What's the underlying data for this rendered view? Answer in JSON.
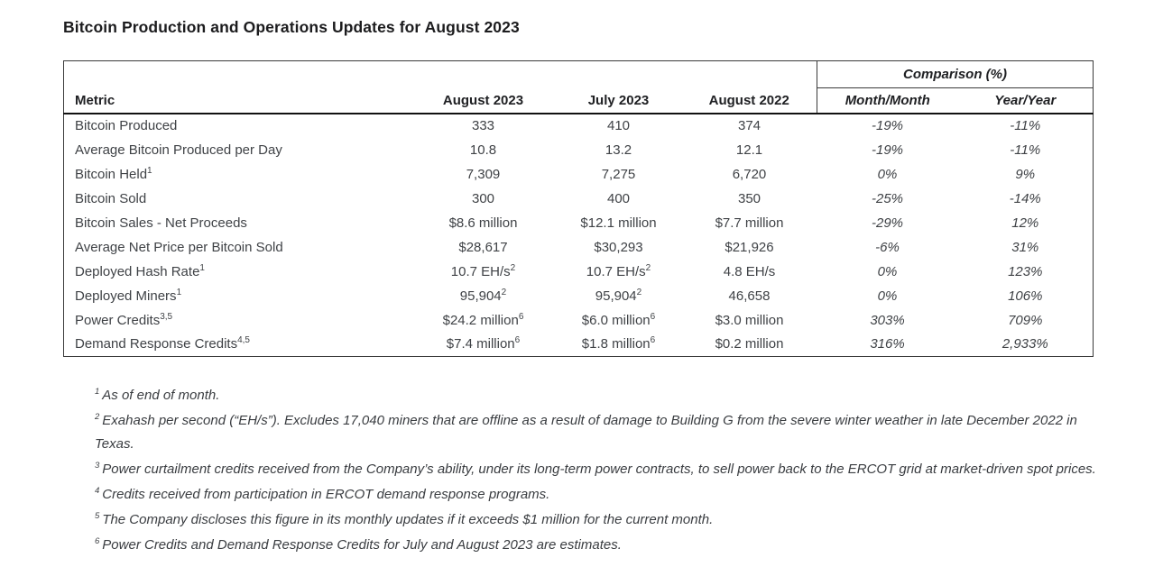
{
  "title": "Bitcoin Production and Operations Updates for August 2023",
  "table": {
    "comparison_header": "Comparison (%)",
    "headers": {
      "metric": "Metric",
      "aug2023": "August 2023",
      "jul2023": "July 2023",
      "aug2022": "August 2022",
      "month_month": "Month/Month",
      "year_year": "Year/Year"
    },
    "rows": [
      {
        "metric": {
          "text": "Bitcoin Produced",
          "sup": ""
        },
        "values": [
          {
            "text": "333",
            "sup": ""
          },
          {
            "text": "410",
            "sup": ""
          },
          {
            "text": "374",
            "sup": ""
          }
        ],
        "mm": "-19%",
        "yy": "-11%"
      },
      {
        "metric": {
          "text": "Average Bitcoin Produced per Day",
          "sup": ""
        },
        "values": [
          {
            "text": "10.8",
            "sup": ""
          },
          {
            "text": "13.2",
            "sup": ""
          },
          {
            "text": "12.1",
            "sup": ""
          }
        ],
        "mm": "-19%",
        "yy": "-11%"
      },
      {
        "metric": {
          "text": "Bitcoin Held",
          "sup": "1"
        },
        "values": [
          {
            "text": "7,309",
            "sup": ""
          },
          {
            "text": "7,275",
            "sup": ""
          },
          {
            "text": "6,720",
            "sup": ""
          }
        ],
        "mm": "0%",
        "yy": "9%"
      },
      {
        "metric": {
          "text": "Bitcoin Sold",
          "sup": ""
        },
        "values": [
          {
            "text": "300",
            "sup": ""
          },
          {
            "text": "400",
            "sup": ""
          },
          {
            "text": "350",
            "sup": ""
          }
        ],
        "mm": "-25%",
        "yy": "-14%"
      },
      {
        "metric": {
          "text": "Bitcoin Sales - Net Proceeds",
          "sup": ""
        },
        "values": [
          {
            "text": "$8.6 million",
            "sup": ""
          },
          {
            "text": "$12.1 million",
            "sup": ""
          },
          {
            "text": "$7.7 million",
            "sup": ""
          }
        ],
        "mm": "-29%",
        "yy": "12%"
      },
      {
        "metric": {
          "text": "Average Net Price per Bitcoin Sold",
          "sup": ""
        },
        "values": [
          {
            "text": "$28,617",
            "sup": ""
          },
          {
            "text": "$30,293",
            "sup": ""
          },
          {
            "text": "$21,926",
            "sup": ""
          }
        ],
        "mm": "-6%",
        "yy": "31%"
      },
      {
        "metric": {
          "text": "Deployed Hash Rate",
          "sup": "1"
        },
        "values": [
          {
            "text": "10.7 EH/s",
            "sup": "2"
          },
          {
            "text": "10.7 EH/s",
            "sup": "2"
          },
          {
            "text": "4.8 EH/s",
            "sup": ""
          }
        ],
        "mm": "0%",
        "yy": "123%"
      },
      {
        "metric": {
          "text": "Deployed Miners",
          "sup": "1"
        },
        "values": [
          {
            "text": "95,904",
            "sup": "2"
          },
          {
            "text": "95,904",
            "sup": "2"
          },
          {
            "text": "46,658",
            "sup": ""
          }
        ],
        "mm": "0%",
        "yy": "106%"
      },
      {
        "metric": {
          "text": "Power Credits",
          "sup": "3,5"
        },
        "values": [
          {
            "text": "$24.2 million",
            "sup": "6"
          },
          {
            "text": "$6.0 million",
            "sup": "6"
          },
          {
            "text": "$3.0 million",
            "sup": ""
          }
        ],
        "mm": "303%",
        "yy": "709%"
      },
      {
        "metric": {
          "text": "Demand Response Credits",
          "sup": "4,5"
        },
        "values": [
          {
            "text": "$7.4 million",
            "sup": "6"
          },
          {
            "text": "$1.8 million",
            "sup": "6"
          },
          {
            "text": "$0.2 million",
            "sup": ""
          }
        ],
        "mm": "316%",
        "yy": "2,933%"
      }
    ]
  },
  "footnotes": [
    {
      "sup": "1",
      "text": "As of end of month."
    },
    {
      "sup": "2",
      "text": "Exahash per second (“EH/s”). Excludes 17,040 miners that are offline as a result of damage to Building G from the severe winter weather in late December 2022 in Texas."
    },
    {
      "sup": "3",
      "text": "Power curtailment credits received from the Company’s ability, under its long-term power contracts, to sell power back to the ERCOT grid at market-driven spot prices."
    },
    {
      "sup": "4",
      "text": "Credits received from participation in ERCOT demand response programs."
    },
    {
      "sup": "5",
      "text": "The Company discloses this figure in its monthly updates if it exceeds $1 million for the current month."
    },
    {
      "sup": "6",
      "text": "Power Credits and Demand Response Credits for July and August 2023 are estimates."
    }
  ]
}
